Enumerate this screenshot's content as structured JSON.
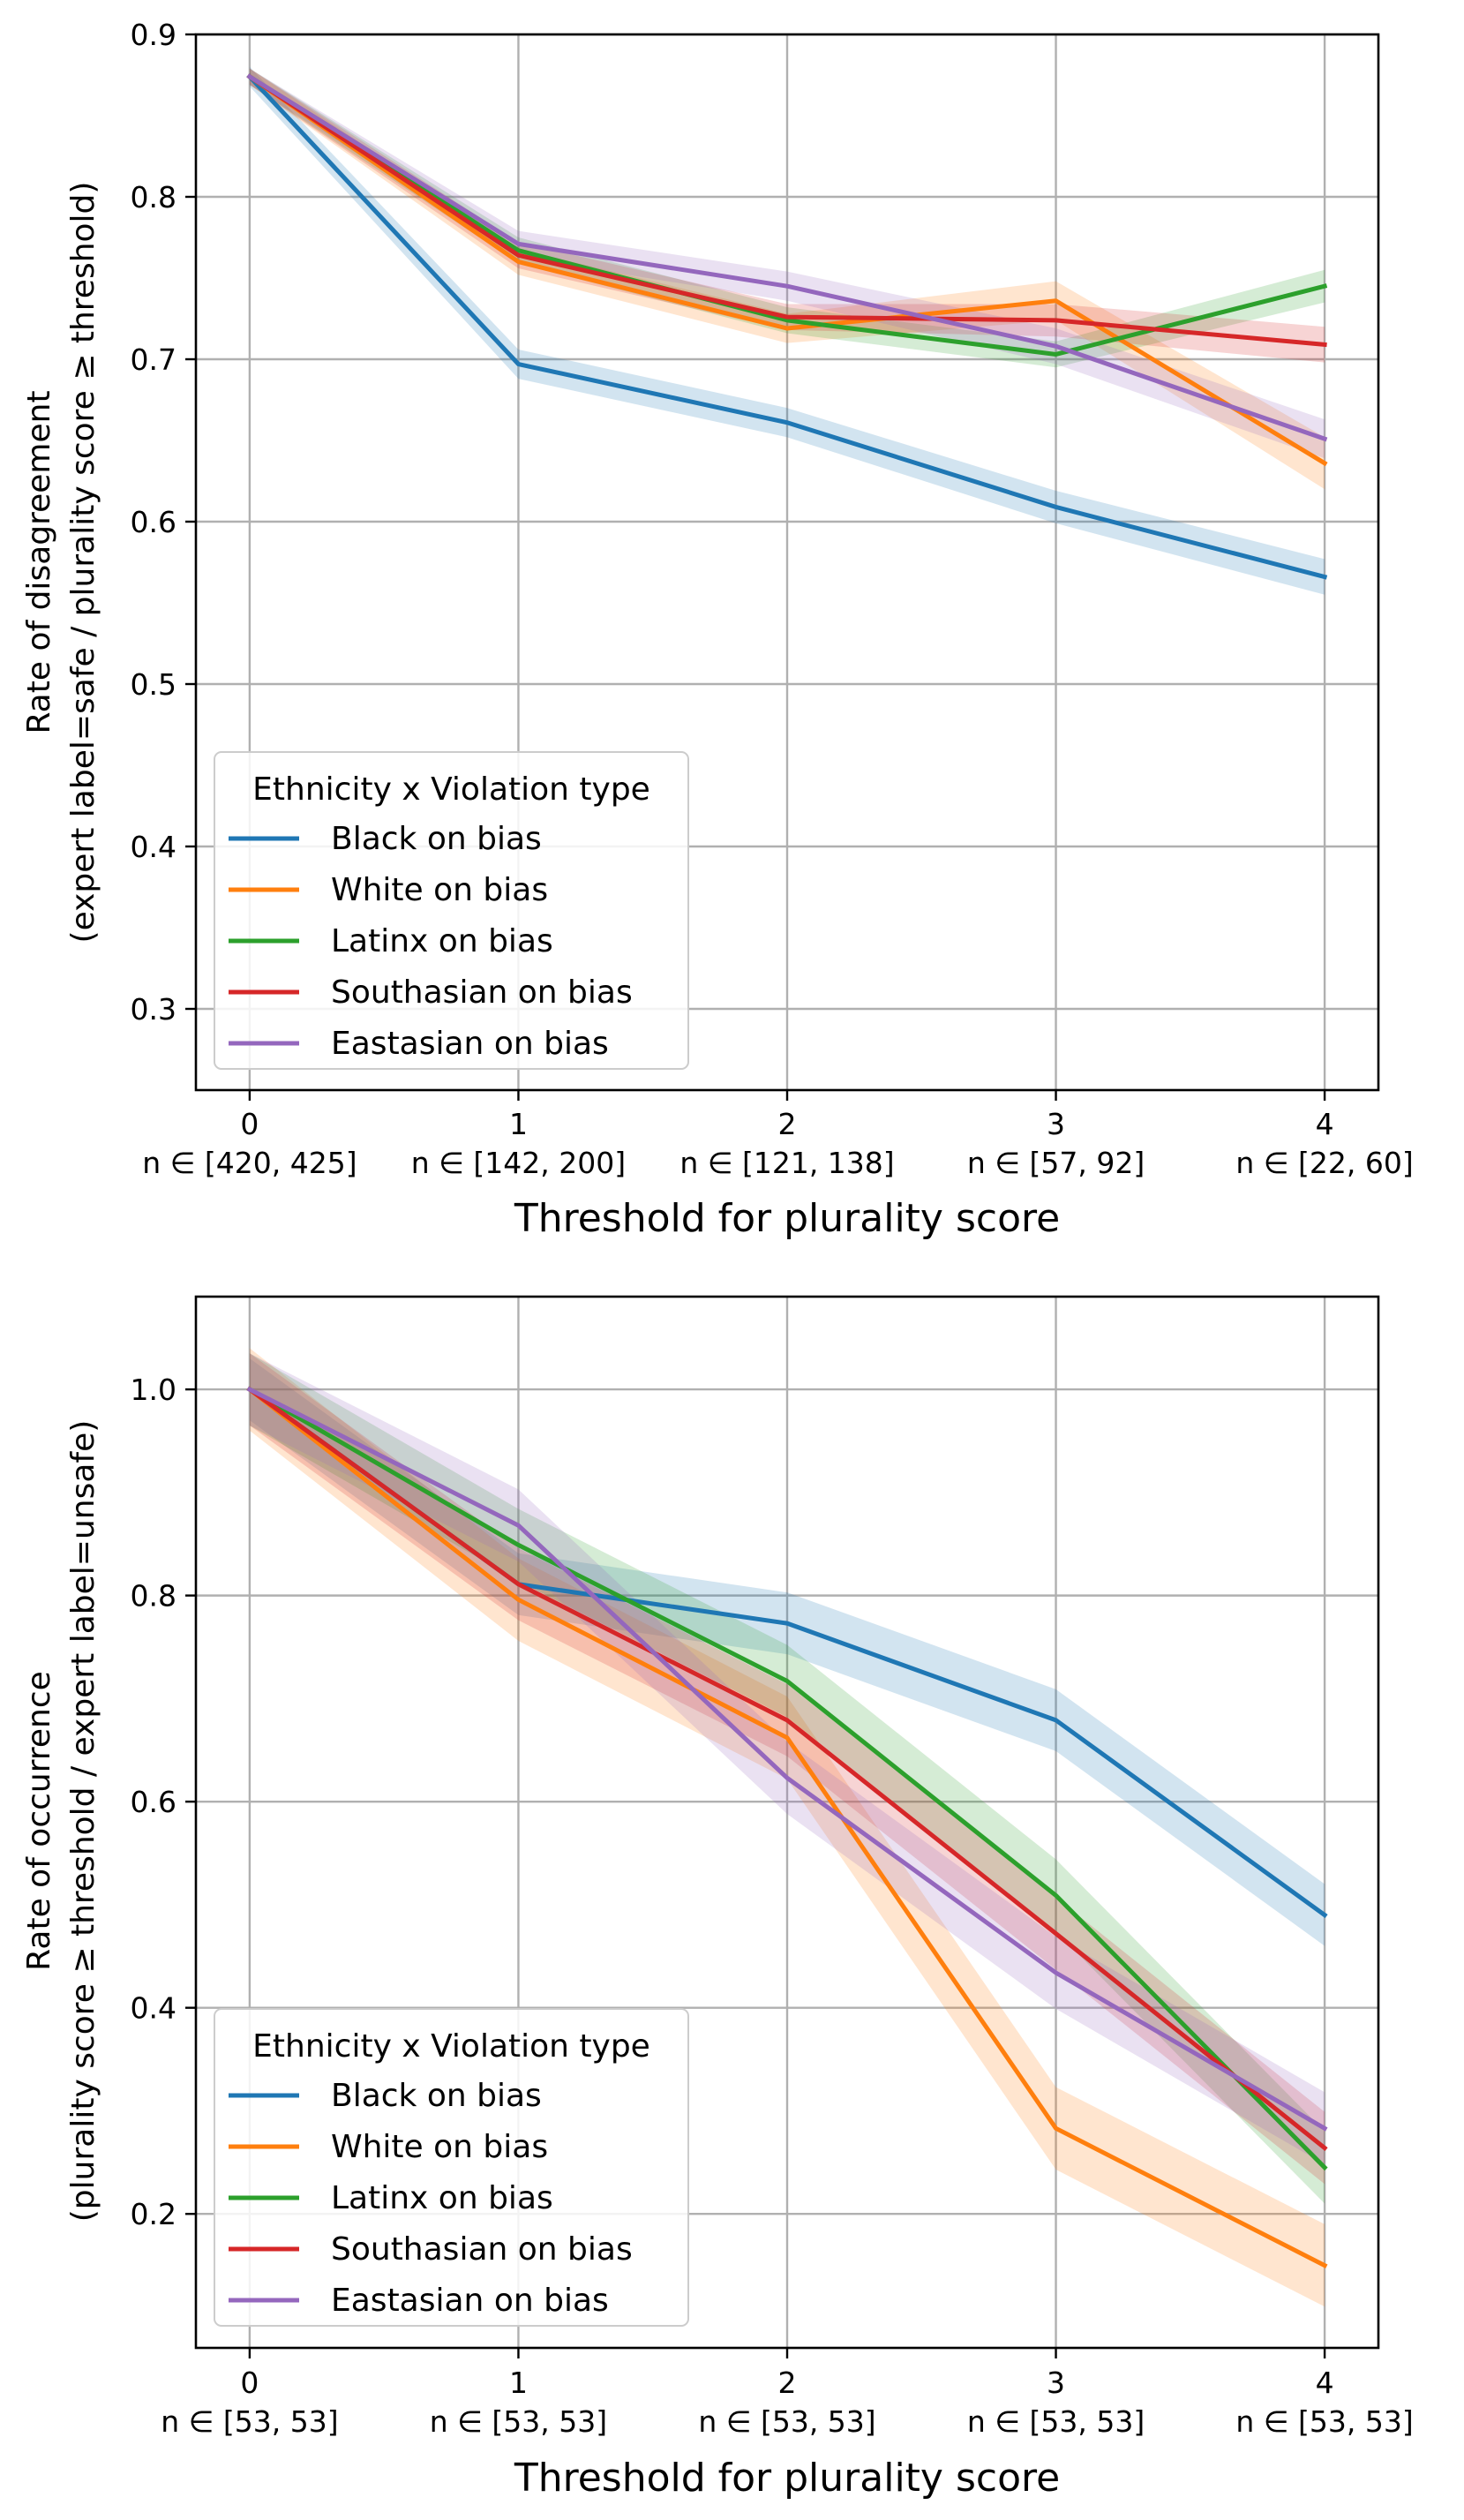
{
  "chart_data": [
    {
      "type": "line",
      "x": [
        0,
        1,
        2,
        3,
        4
      ],
      "x_tick_labels": [
        "0",
        "1",
        "2",
        "3",
        "4"
      ],
      "x_sub_labels": [
        "n ∈ [420, 425]",
        "n ∈ [142, 200]",
        "n ∈ [121, 138]",
        "n ∈ [57, 92]",
        "n ∈ [22, 60]"
      ],
      "xlabel": "Threshold for plurality score",
      "ylabel_lines": [
        "Rate of disagreement",
        "(expert label=safe / plurality score ≥ threshold)"
      ],
      "xlim": [
        -0.2,
        4.2
      ],
      "ylim": [
        0.25,
        0.9
      ],
      "y_ticks": [
        0.3,
        0.4,
        0.5,
        0.6,
        0.7,
        0.8,
        0.9
      ],
      "y_tick_labels": [
        "0.3",
        "0.4",
        "0.5",
        "0.6",
        "0.7",
        "0.8",
        "0.9"
      ],
      "grid": true,
      "legend_title": "Ethnicity x Violation type",
      "legend_position": "lower-left",
      "series": [
        {
          "name": "Black on bias",
          "color": "#1f77b4",
          "values": [
            0.874,
            0.697,
            0.661,
            0.609,
            0.566
          ],
          "band": [
            0.006,
            0.009,
            0.009,
            0.01,
            0.011
          ]
        },
        {
          "name": "White on bias",
          "color": "#ff7f0e",
          "values": [
            0.874,
            0.76,
            0.719,
            0.736,
            0.636
          ],
          "band": [
            0.005,
            0.008,
            0.009,
            0.012,
            0.016
          ]
        },
        {
          "name": "Latinx on bias",
          "color": "#2ca02c",
          "values": [
            0.874,
            0.767,
            0.724,
            0.703,
            0.745
          ],
          "band": [
            0.005,
            0.008,
            0.008,
            0.008,
            0.01
          ]
        },
        {
          "name": "Southasian on bias",
          "color": "#d62728",
          "values": [
            0.874,
            0.764,
            0.726,
            0.724,
            0.709
          ],
          "band": [
            0.005,
            0.008,
            0.008,
            0.01,
            0.011
          ]
        },
        {
          "name": "Eastasian on bias",
          "color": "#9467bd",
          "values": [
            0.874,
            0.771,
            0.745,
            0.708,
            0.651
          ],
          "band": [
            0.005,
            0.008,
            0.009,
            0.011,
            0.012
          ]
        }
      ]
    },
    {
      "type": "line",
      "x": [
        0,
        1,
        2,
        3,
        4
      ],
      "x_tick_labels": [
        "0",
        "1",
        "2",
        "3",
        "4"
      ],
      "x_sub_labels": [
        "n ∈ [53, 53]",
        "n ∈ [53, 53]",
        "n ∈ [53, 53]",
        "n ∈ [53, 53]",
        "n ∈ [53, 53]"
      ],
      "xlabel": "Threshold for plurality score",
      "ylabel_lines": [
        "Rate of occurrence",
        "(plurality score ≥ threshold / expert label=unsafe)"
      ],
      "xlim": [
        -0.2,
        4.2
      ],
      "ylim": [
        0.07,
        1.09
      ],
      "y_ticks": [
        0.2,
        0.4,
        0.6,
        0.8,
        1.0
      ],
      "y_tick_labels": [
        "0.2",
        "0.4",
        "0.6",
        "0.8",
        "1.0"
      ],
      "grid": true,
      "legend_title": "Ethnicity x Violation type",
      "legend_position": "lower-left",
      "series": [
        {
          "name": "Black on bias",
          "color": "#1f77b4",
          "values": [
            1.0,
            0.811,
            0.773,
            0.679,
            0.49
          ],
          "band": [
            0.03,
            0.03,
            0.03,
            0.03,
            0.03
          ]
        },
        {
          "name": "White on bias",
          "color": "#ff7f0e",
          "values": [
            1.0,
            0.796,
            0.662,
            0.283,
            0.15
          ],
          "band": [
            0.04,
            0.04,
            0.04,
            0.04,
            0.04
          ]
        },
        {
          "name": "Latinx on bias",
          "color": "#2ca02c",
          "values": [
            1.0,
            0.849,
            0.717,
            0.509,
            0.245
          ],
          "band": [
            0.035,
            0.035,
            0.035,
            0.035,
            0.035
          ]
        },
        {
          "name": "Southasian on bias",
          "color": "#d62728",
          "values": [
            1.0,
            0.811,
            0.679,
            0.472,
            0.264
          ],
          "band": [
            0.035,
            0.035,
            0.035,
            0.035,
            0.035
          ]
        },
        {
          "name": "Eastasian on bias",
          "color": "#9467bd",
          "values": [
            1.0,
            0.868,
            0.623,
            0.434,
            0.283
          ],
          "band": [
            0.035,
            0.035,
            0.035,
            0.035,
            0.035
          ]
        }
      ]
    }
  ]
}
